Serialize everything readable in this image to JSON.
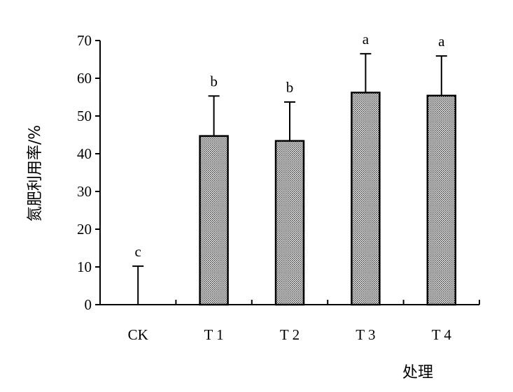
{
  "chart_data": {
    "type": "bar",
    "categories": [
      "CK",
      "T 1",
      "T 2",
      "T 3",
      "T 4"
    ],
    "values": [
      0,
      44.7,
      43.4,
      56.2,
      55.4
    ],
    "error": [
      10.2,
      10.6,
      10.3,
      10.3,
      10.5
    ],
    "significance": [
      "c",
      "b",
      "b",
      "a",
      "a"
    ],
    "xlabel": "处理",
    "ylabel": "氮肥利用率/%",
    "ylim": [
      0,
      70
    ],
    "yticks": [
      0,
      10,
      20,
      30,
      40,
      50,
      60,
      70
    ],
    "ytick_labels": [
      "0",
      "10",
      "20",
      "30",
      "40",
      "50",
      "60",
      "70"
    ],
    "grid": false,
    "bar_fill": "dotted-gray"
  }
}
